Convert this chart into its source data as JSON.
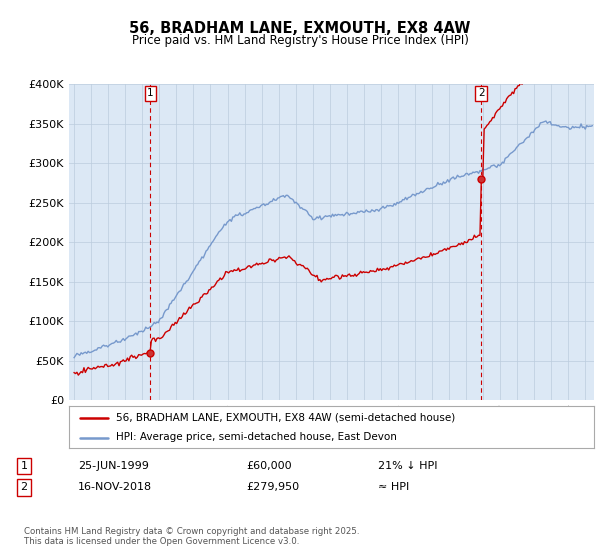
{
  "title": "56, BRADHAM LANE, EXMOUTH, EX8 4AW",
  "subtitle": "Price paid vs. HM Land Registry's House Price Index (HPI)",
  "sale1_date": "25-JUN-1999",
  "sale1_price": 60000,
  "sale1_label": "21% ↓ HPI",
  "sale2_date": "16-NOV-2018",
  "sale2_price": 279950,
  "sale2_label": "≈ HPI",
  "sale1_x": 1999.48,
  "sale2_x": 2018.88,
  "legend_line1": "56, BRADHAM LANE, EXMOUTH, EX8 4AW (semi-detached house)",
  "legend_line2": "HPI: Average price, semi-detached house, East Devon",
  "footer": "Contains HM Land Registry data © Crown copyright and database right 2025.\nThis data is licensed under the Open Government Licence v3.0.",
  "red_color": "#cc0000",
  "blue_color": "#7799cc",
  "bg_color": "#dce8f5",
  "grid_color": "#bbccdd",
  "ylim": [
    0,
    400000
  ],
  "xlim_start": 1994.7,
  "xlim_end": 2025.5
}
